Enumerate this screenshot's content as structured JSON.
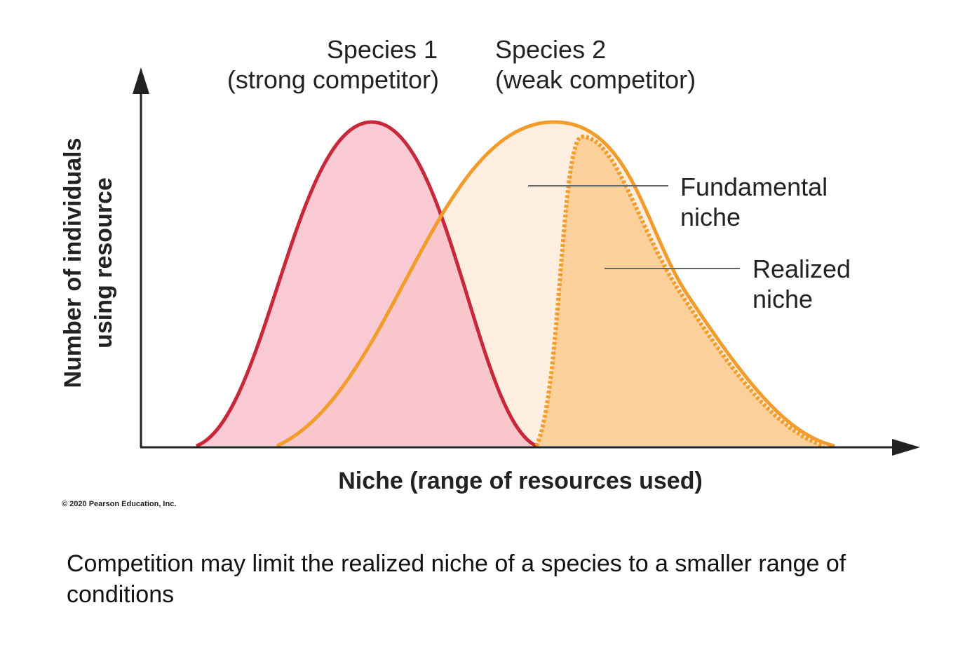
{
  "figure": {
    "species_1": {
      "name": "Species 1",
      "role": "(strong competitor)"
    },
    "species_2": {
      "name": "Species 2",
      "role": "(weak competitor)"
    },
    "fundamental_niche": [
      "Fundamental",
      "niche"
    ],
    "realized_niche": [
      "Realized",
      "niche"
    ],
    "y_axis_label": [
      "Number of individuals",
      "using resource"
    ],
    "x_axis_label": "Niche (range of resources used)",
    "copyright": "© 2020 Pearson Education, Inc."
  },
  "caption": "Competition may limit the realized niche of a species to a smaller range of conditions"
}
